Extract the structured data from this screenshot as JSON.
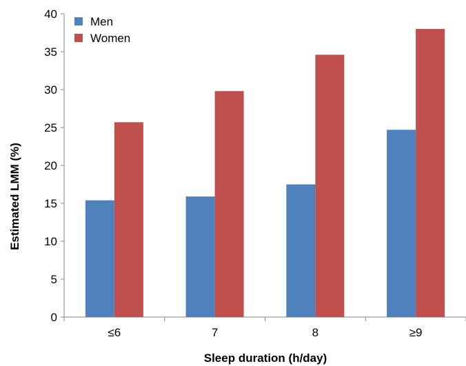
{
  "chart_data": {
    "type": "bar",
    "title": "",
    "xlabel": "Sleep duration (h/day)",
    "ylabel": "Estimated LMM (%)",
    "categories": [
      "≤6",
      "7",
      "8",
      "≥9"
    ],
    "ylim": [
      0,
      40
    ],
    "yticks": [
      0,
      5,
      10,
      15,
      20,
      25,
      30,
      35,
      40
    ],
    "grid": false,
    "legend_position": "top-left",
    "series": [
      {
        "name": "Men",
        "color": "#4f81bd",
        "values": [
          15.4,
          15.9,
          17.5,
          24.7
        ]
      },
      {
        "name": "Women",
        "color": "#c0504d",
        "values": [
          25.7,
          29.8,
          34.6,
          38.0
        ]
      }
    ]
  }
}
